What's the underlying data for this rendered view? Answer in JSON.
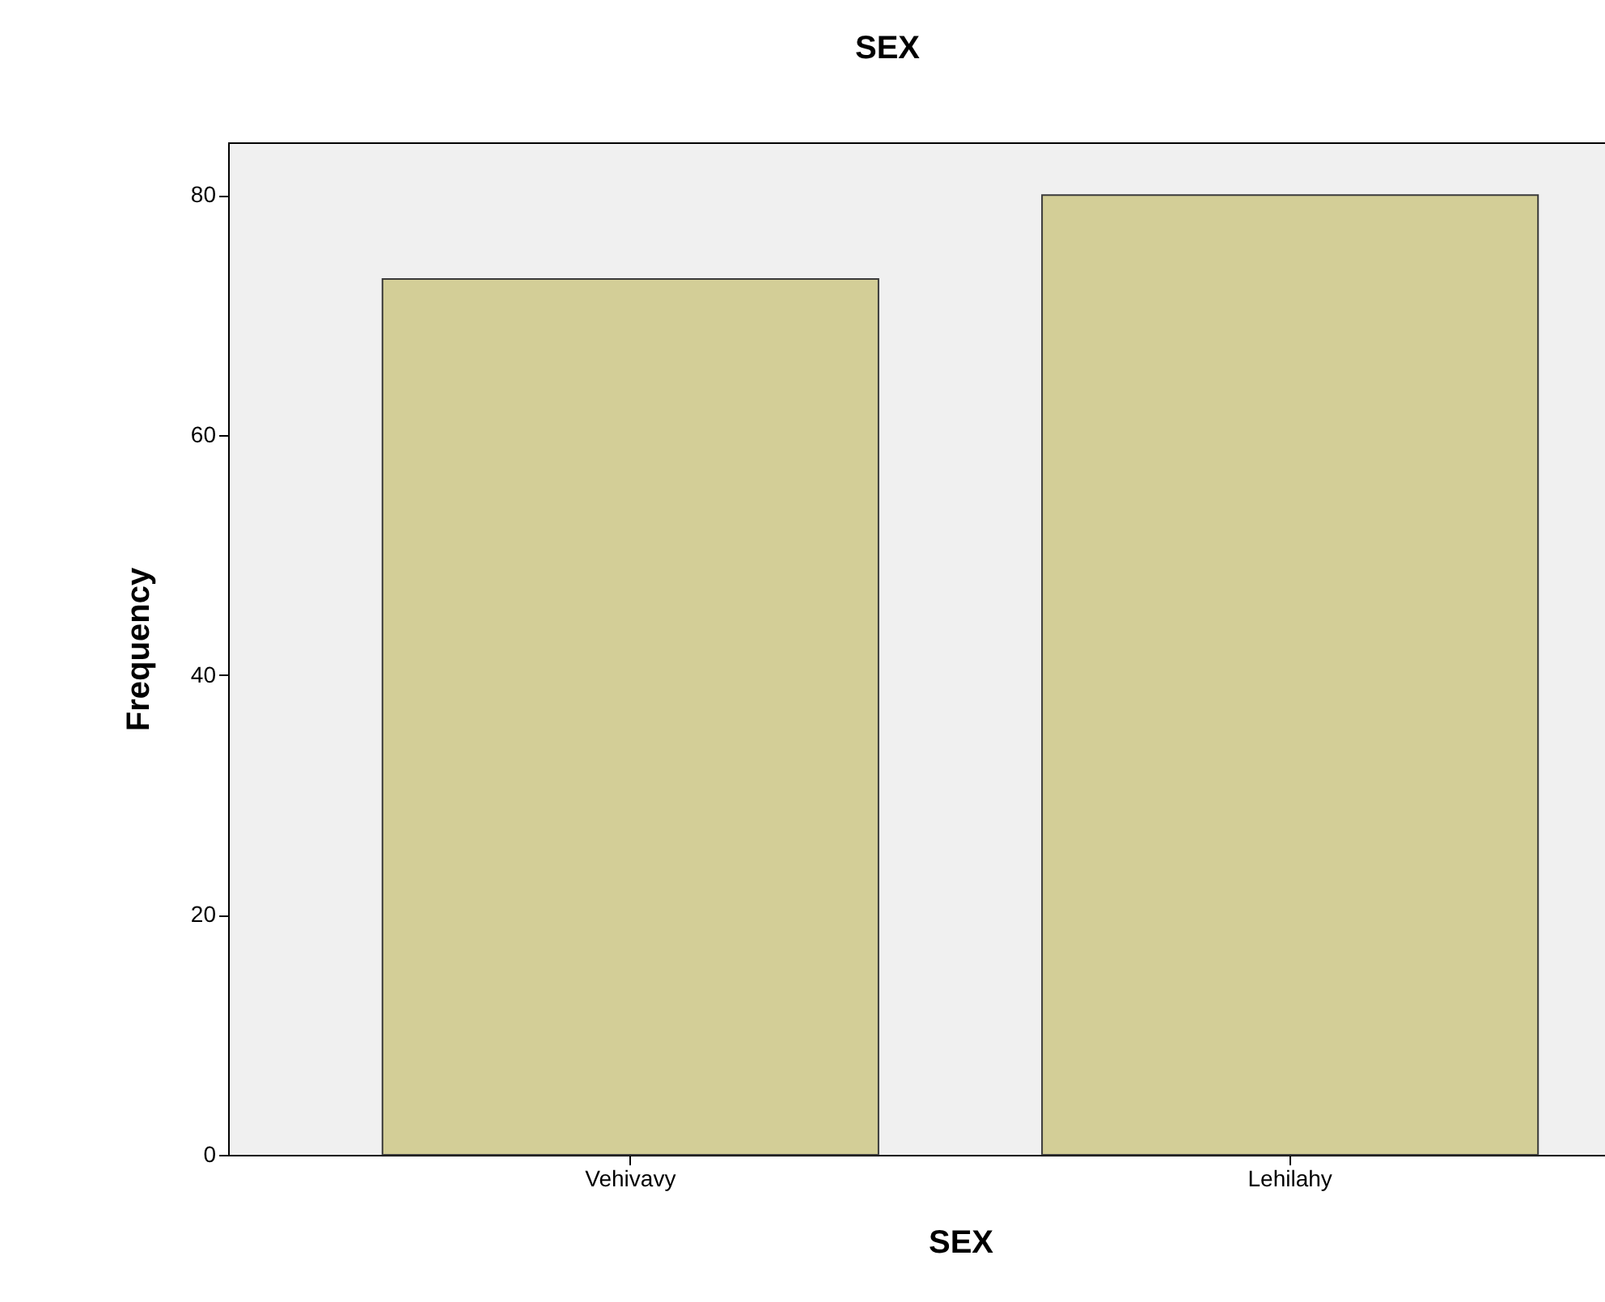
{
  "chart_data": {
    "type": "bar",
    "title": "SEX",
    "xlabel": "SEX",
    "ylabel": "Frequency",
    "categories": [
      "Vehivavy",
      "Lehilahy"
    ],
    "values": [
      73,
      80
    ],
    "color": "#d3ce97",
    "ylim": [
      0,
      84.4
    ],
    "yticks": [
      0,
      20,
      40,
      60,
      80
    ],
    "grid": false
  }
}
